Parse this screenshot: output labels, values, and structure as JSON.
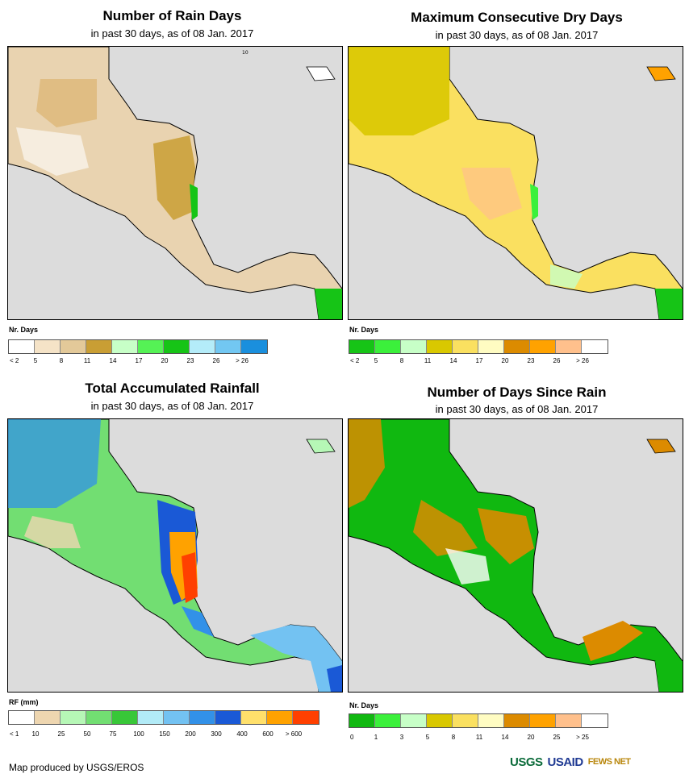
{
  "panels": [
    {
      "title": "Number of Rain Days",
      "subtitle": "in past 30 days, as of 08 Jan. 2017",
      "legend_title": "Nr. Days",
      "legend_colors": [
        "#ffffff",
        "#f5e3c7",
        "#e3c999",
        "#c99e34",
        "#c7ffc7",
        "#55f255",
        "#16c416",
        "#b4ecf9",
        "#72c7f2",
        "#1a8fdd"
      ],
      "legend_ticks": [
        "< 2",
        "5",
        "8",
        "11",
        "14",
        "17",
        "20",
        "23",
        "26",
        "> 26"
      ]
    },
    {
      "title": "Maximum Consecutive Dry Days",
      "subtitle": "in past 30 days, as of 08 Jan. 2017",
      "legend_title": "Nr. Days",
      "legend_colors": [
        "#16c416",
        "#3bf03b",
        "#c7ffc7",
        "#d9c800",
        "#fae060",
        "#fffcc2",
        "#dc8b00",
        "#ffa200",
        "#ffc08c",
        "#ffffff"
      ],
      "legend_ticks": [
        "< 2",
        "5",
        "8",
        "11",
        "14",
        "17",
        "20",
        "23",
        "26",
        "> 26"
      ]
    },
    {
      "title": "Total Accumulated Rainfall",
      "subtitle": "in past 30 days, as of 08 Jan. 2017",
      "legend_title": "RF (mm)",
      "legend_colors": [
        "#ffffff",
        "#eed6b0",
        "#b6f7b6",
        "#72de72",
        "#38c738",
        "#b2ebf7",
        "#73c2f2",
        "#3291e8",
        "#1a59d6",
        "#ffe06b",
        "#ffa200",
        "#ff4000"
      ],
      "legend_ticks": [
        "< 1",
        "10",
        "25",
        "50",
        "75",
        "100",
        "150",
        "200",
        "300",
        "400",
        "600",
        "> 600"
      ]
    },
    {
      "title": "Number of Days Since Rain",
      "subtitle": "in past 30 days, as of 08 Jan. 2017",
      "legend_title": "Nr. Days",
      "legend_colors": [
        "#10b810",
        "#3bf03b",
        "#c7ffc7",
        "#d9c800",
        "#fae060",
        "#fffcc2",
        "#dc8b00",
        "#ffa200",
        "#ffc08c",
        "#ffffff"
      ],
      "legend_ticks": [
        "0",
        "1",
        "3",
        "5",
        "8",
        "11",
        "14",
        "20",
        "25",
        "> 25"
      ]
    }
  ],
  "credit": "Map produced by USGS/EROS",
  "logos": [
    "USGS",
    "USAID",
    "FEWS NET"
  ],
  "map_label": "10"
}
